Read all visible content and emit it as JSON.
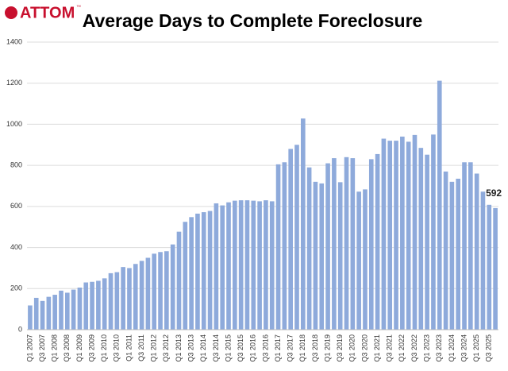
{
  "logo": "ATTOM",
  "logo_mark": "™",
  "chart_data": {
    "type": "bar",
    "title": "Average Days to Complete Foreclosure",
    "categories": [
      "Q1 2007",
      null,
      "Q3 2007",
      null,
      "Q1 2008",
      null,
      "Q3 2008",
      null,
      "Q1 2009",
      null,
      "Q3 2009",
      null,
      "Q1 2010",
      null,
      "Q3 2010",
      null,
      "Q1 2011",
      null,
      "Q3 2011",
      null,
      "Q1 2012",
      null,
      "Q3 2012",
      null,
      "Q1 2013",
      null,
      "Q3 2013",
      null,
      "Q1 2014",
      null,
      "Q3 2014",
      null,
      "Q1 2015",
      null,
      "Q3 2015",
      null,
      "Q1 2016",
      null,
      "Q3 2016",
      null,
      "Q1 2017",
      null,
      "Q3 2017",
      null,
      "Q1 2018",
      null,
      "Q3 2018",
      null,
      "Q1 2019",
      null,
      "Q3 2019",
      null,
      "Q1 2020",
      null,
      "Q3 2020",
      null,
      "Q1 2021",
      null,
      "Q3 2021",
      null,
      "Q1 2022",
      null,
      "Q3 2022",
      null,
      "Q1 2023",
      null,
      "Q3 2023",
      null,
      "Q1 2024",
      null,
      "Q3 2024",
      null,
      "Q1 2025",
      null,
      "Q3 2025",
      null
    ],
    "values": [
      118,
      155,
      140,
      160,
      170,
      190,
      180,
      195,
      205,
      230,
      233,
      238,
      250,
      275,
      280,
      305,
      300,
      320,
      335,
      350,
      370,
      378,
      382,
      415,
      477,
      525,
      548,
      565,
      572,
      578,
      615,
      605,
      620,
      628,
      630,
      630,
      628,
      625,
      630,
      625,
      805,
      815,
      880,
      900,
      1028,
      790,
      720,
      712,
      810,
      835,
      718,
      840,
      835,
      672,
      683,
      830,
      855,
      930,
      920,
      920,
      940,
      915,
      948,
      885,
      852,
      950,
      1212,
      770,
      720,
      735,
      815,
      815,
      760,
      672,
      608,
      592
    ],
    "color": "#8eaadb",
    "ylim": [
      0,
      1400
    ],
    "yticks": [
      0,
      200,
      400,
      600,
      800,
      1000,
      1200,
      1400
    ],
    "grid": true
  }
}
